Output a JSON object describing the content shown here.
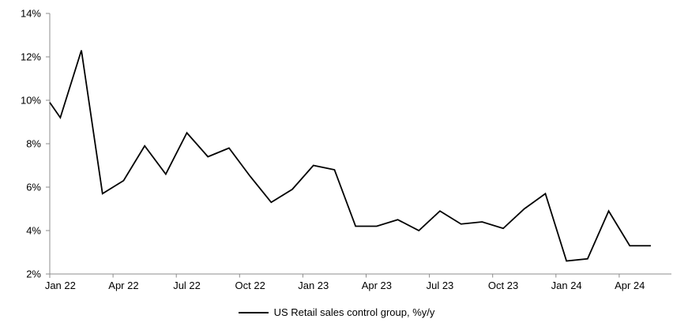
{
  "chart_data": {
    "type": "line",
    "title": "",
    "xlabel": "",
    "ylabel": "",
    "ylim": [
      2,
      14
    ],
    "ytick_step": 2,
    "ytick_labels": [
      "2%",
      "4%",
      "6%",
      "8%",
      "10%",
      "12%",
      "14%"
    ],
    "xtick_labels": [
      "Jan 22",
      "Apr 22",
      "Jul 22",
      "Oct 22",
      "Jan 23",
      "Apr 23",
      "Jul 23",
      "Oct 23",
      "Jan 24",
      "Apr 24"
    ],
    "xtick_interval_months": 3,
    "grid": false,
    "axis_color": "#8c8c8c",
    "text_color": "#000000",
    "background_color": "#ffffff",
    "legend": {
      "position": "bottom",
      "entries": [
        {
          "label": "US Retail sales control group, %y/y",
          "color": "#000000"
        }
      ]
    },
    "categories": [
      "Jan 22",
      "Feb 22",
      "Mar 22",
      "Apr 22",
      "May 22",
      "Jun 22",
      "Jul 22",
      "Aug 22",
      "Sep 22",
      "Oct 22",
      "Nov 22",
      "Dec 22",
      "Jan 23",
      "Feb 23",
      "Mar 23",
      "Apr 23",
      "May 23",
      "Jun 23",
      "Jul 23",
      "Aug 23",
      "Sep 23",
      "Oct 23",
      "Nov 23",
      "Dec 23",
      "Jan 24",
      "Feb 24",
      "Mar 24",
      "Apr 24",
      "May 24"
    ],
    "series": [
      {
        "name": "US Retail sales control group, %y/y",
        "color": "#000000",
        "axis_edge_start_value": 9.9,
        "values": [
          9.2,
          12.3,
          5.7,
          6.3,
          7.9,
          6.6,
          8.5,
          7.4,
          7.8,
          6.5,
          5.3,
          5.9,
          7.0,
          6.8,
          4.2,
          4.2,
          4.5,
          4.0,
          4.9,
          4.3,
          4.4,
          4.1,
          5.0,
          5.7,
          2.6,
          2.7,
          4.9,
          3.3,
          3.3
        ]
      }
    ]
  }
}
